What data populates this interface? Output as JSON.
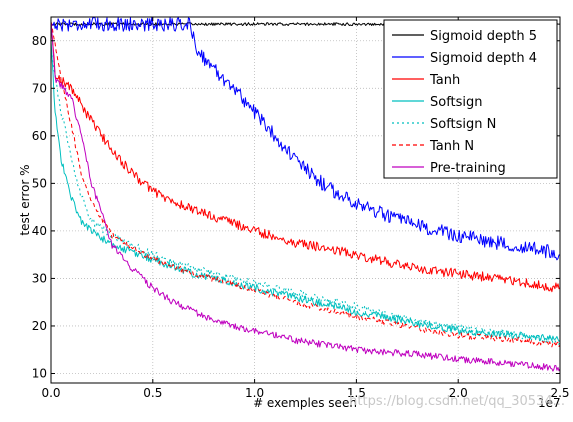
{
  "chart_data": {
    "type": "line",
    "title": "",
    "xlabel": "# exemples seen",
    "ylabel": "test error %",
    "x_scale_label": "1e7",
    "xlim": [
      0,
      2.5
    ],
    "ylim": [
      8,
      85
    ],
    "x_ticks": [
      "0.0",
      "0.5",
      "1.0",
      "1.5",
      "2.0",
      "2.5"
    ],
    "y_ticks": [
      "10",
      "20",
      "30",
      "40",
      "50",
      "60",
      "70",
      "80"
    ],
    "grid": true,
    "legend_position": "top-right",
    "series": [
      {
        "name": "Sigmoid depth 5",
        "color": "#000000",
        "dash": "solid",
        "noise": 0.3,
        "points": [
          [
            0.0,
            83.5
          ],
          [
            2.5,
            83.5
          ]
        ]
      },
      {
        "name": "Sigmoid depth 4",
        "color": "#0000ff",
        "dash": "solid",
        "noise": 1.5,
        "points": [
          [
            0.0,
            83.5
          ],
          [
            0.68,
            83.5
          ],
          [
            0.72,
            78
          ],
          [
            0.8,
            74
          ],
          [
            0.9,
            70
          ],
          [
            1.0,
            65
          ],
          [
            1.1,
            60
          ],
          [
            1.2,
            55
          ],
          [
            1.3,
            51
          ],
          [
            1.4,
            48
          ],
          [
            1.5,
            46
          ],
          [
            1.6,
            44
          ],
          [
            1.8,
            41
          ],
          [
            2.0,
            39
          ],
          [
            2.2,
            37.5
          ],
          [
            2.4,
            36
          ],
          [
            2.5,
            35
          ]
        ]
      },
      {
        "name": "Tanh",
        "color": "#ff0000",
        "dash": "solid",
        "noise": 1.0,
        "points": [
          [
            0.0,
            84
          ],
          [
            0.02,
            73
          ],
          [
            0.1,
            70
          ],
          [
            0.2,
            63
          ],
          [
            0.3,
            57
          ],
          [
            0.4,
            52
          ],
          [
            0.5,
            48.5
          ],
          [
            0.6,
            46
          ],
          [
            0.8,
            43
          ],
          [
            1.0,
            40
          ],
          [
            1.2,
            37.5
          ],
          [
            1.4,
            36
          ],
          [
            1.6,
            34
          ],
          [
            1.8,
            32
          ],
          [
            2.0,
            31
          ],
          [
            2.2,
            30
          ],
          [
            2.4,
            28.5
          ],
          [
            2.5,
            28
          ]
        ]
      },
      {
        "name": "Softsign",
        "color": "#00bfbf",
        "dash": "solid",
        "noise": 0.8,
        "points": [
          [
            0.0,
            80
          ],
          [
            0.02,
            65
          ],
          [
            0.05,
            55
          ],
          [
            0.1,
            47
          ],
          [
            0.15,
            42
          ],
          [
            0.2,
            40
          ],
          [
            0.3,
            37
          ],
          [
            0.5,
            34
          ],
          [
            0.7,
            31
          ],
          [
            1.0,
            28
          ],
          [
            1.2,
            26
          ],
          [
            1.5,
            23
          ],
          [
            1.8,
            20.5
          ],
          [
            2.0,
            19
          ],
          [
            2.3,
            18
          ],
          [
            2.5,
            17
          ]
        ]
      },
      {
        "name": "Softsign N",
        "color": "#00bfbf",
        "dash": "dotted",
        "noise": 0.8,
        "points": [
          [
            0.0,
            78
          ],
          [
            0.05,
            65
          ],
          [
            0.1,
            55
          ],
          [
            0.15,
            47
          ],
          [
            0.2,
            42
          ],
          [
            0.3,
            39
          ],
          [
            0.5,
            35
          ],
          [
            0.7,
            32
          ],
          [
            1.0,
            29
          ],
          [
            1.2,
            27
          ],
          [
            1.5,
            24
          ],
          [
            1.8,
            21
          ],
          [
            2.0,
            19.5
          ],
          [
            2.3,
            18
          ],
          [
            2.5,
            16.5
          ]
        ]
      },
      {
        "name": "Tanh N",
        "color": "#ff0000",
        "dash": "dashed",
        "noise": 0.6,
        "points": [
          [
            0.0,
            84
          ],
          [
            0.05,
            72
          ],
          [
            0.1,
            62
          ],
          [
            0.15,
            52
          ],
          [
            0.2,
            46
          ],
          [
            0.3,
            39
          ],
          [
            0.5,
            34
          ],
          [
            0.7,
            31
          ],
          [
            1.0,
            27.5
          ],
          [
            1.2,
            25
          ],
          [
            1.5,
            22
          ],
          [
            1.8,
            19.5
          ],
          [
            2.0,
            18
          ],
          [
            2.3,
            17
          ],
          [
            2.5,
            16
          ]
        ]
      },
      {
        "name": "Pre-training",
        "color": "#bf00bf",
        "dash": "solid",
        "noise": 0.7,
        "points": [
          [
            0.0,
            84
          ],
          [
            0.02,
            72
          ],
          [
            0.1,
            68
          ],
          [
            0.15,
            60
          ],
          [
            0.2,
            50
          ],
          [
            0.3,
            37
          ],
          [
            0.4,
            32
          ],
          [
            0.5,
            28
          ],
          [
            0.6,
            25
          ],
          [
            0.8,
            21
          ],
          [
            1.0,
            19
          ],
          [
            1.2,
            17
          ],
          [
            1.5,
            15
          ],
          [
            1.8,
            14
          ],
          [
            2.0,
            13
          ],
          [
            2.3,
            12
          ],
          [
            2.5,
            11
          ]
        ]
      }
    ]
  },
  "watermark": "https://blog.csdn.net/qq_30534..."
}
